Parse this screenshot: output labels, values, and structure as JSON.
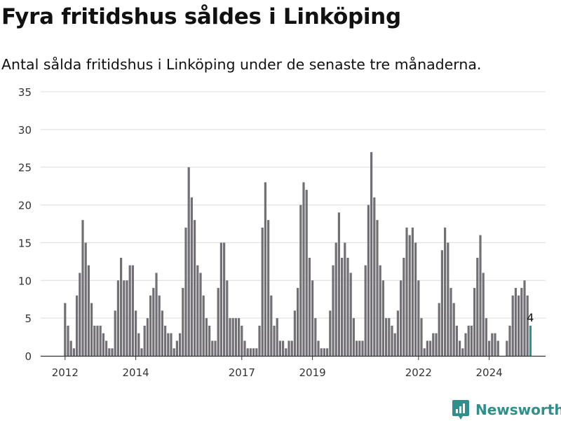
{
  "title": "Fyra fritidshus såldes i Linköping",
  "subtitle": "Antal sålda fritidshus i Linköping under de senaste tre månaderna.",
  "brand": {
    "name": "Newsworthy",
    "icon": "newsworthy-logo-icon",
    "color": "#2f8f8b"
  },
  "chart_data": {
    "type": "bar",
    "title": "Fyra fritidshus såldes i Linköping",
    "subtitle": "Antal sålda fritidshus i Linköping under de senaste tre månaderna.",
    "frequency": "monthly",
    "start": "2012-01",
    "ylim": [
      0,
      35
    ],
    "yticks": [
      0,
      5,
      10,
      15,
      20,
      25,
      30,
      35
    ],
    "xtick_labels": [
      "2012",
      "2014",
      "2017",
      "2019",
      "2022",
      "2024"
    ],
    "grid": true,
    "bar_color": "#727075",
    "highlight_color": "#2a9590",
    "highlight_label": "4",
    "values": [
      7,
      4,
      2,
      1,
      8,
      11,
      18,
      15,
      12,
      7,
      4,
      4,
      4,
      3,
      2,
      1,
      1,
      6,
      10,
      13,
      10,
      10,
      12,
      12,
      6,
      3,
      1,
      4,
      5,
      8,
      9,
      11,
      8,
      6,
      4,
      3,
      3,
      1,
      2,
      3,
      9,
      17,
      25,
      21,
      18,
      12,
      11,
      8,
      5,
      4,
      2,
      2,
      9,
      15,
      15,
      10,
      5,
      5,
      5,
      5,
      4,
      2,
      1,
      1,
      1,
      1,
      4,
      17,
      23,
      18,
      8,
      4,
      5,
      2,
      2,
      1,
      2,
      2,
      6,
      9,
      20,
      23,
      22,
      13,
      10,
      5,
      2,
      1,
      1,
      1,
      6,
      12,
      15,
      19,
      13,
      15,
      13,
      11,
      5,
      2,
      2,
      2,
      12,
      20,
      27,
      21,
      18,
      12,
      10,
      5,
      5,
      4,
      3,
      6,
      10,
      13,
      17,
      16,
      17,
      15,
      10,
      5,
      1,
      2,
      2,
      3,
      3,
      7,
      14,
      17,
      15,
      9,
      7,
      4,
      2,
      1,
      3,
      4,
      4,
      9,
      13,
      16,
      11,
      5,
      2,
      3,
      3,
      2,
      0,
      0,
      2,
      4,
      8,
      9,
      8,
      9,
      10,
      8,
      4
    ]
  }
}
